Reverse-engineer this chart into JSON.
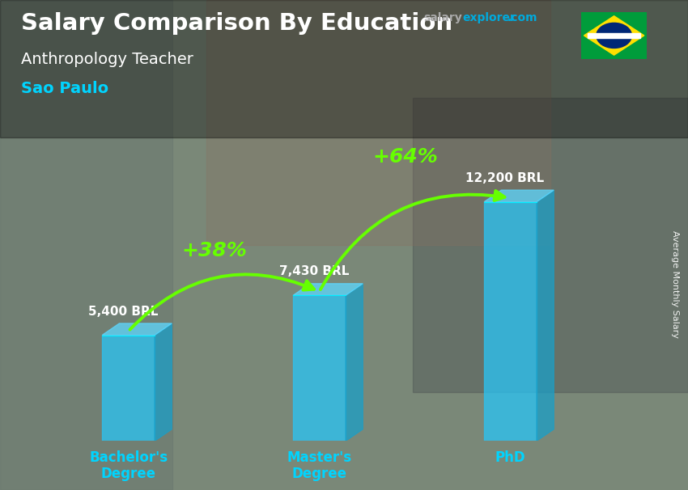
{
  "title": "Salary Comparison By Education",
  "subtitle": "Anthropology Teacher",
  "location": "Sao Paulo",
  "categories": [
    "Bachelor's\nDegree",
    "Master's\nDegree",
    "PhD"
  ],
  "values": [
    5400,
    7430,
    12200
  ],
  "value_labels": [
    "5,400 BRL",
    "7,430 BRL",
    "12,200 BRL"
  ],
  "pct_labels": [
    "+38%",
    "+64%"
  ],
  "bar_face_color": "#29c5f6",
  "bar_right_color": "#1a9fc8",
  "bar_top_color": "#5dd8ff",
  "bar_edge_color": "#00eeff",
  "bg_color": "#7a8a8a",
  "title_color": "#ffffff",
  "subtitle_color": "#ffffff",
  "location_color": "#00d4ff",
  "value_label_color": "#ffffff",
  "pct_color": "#66ff00",
  "arrow_color": "#66ff00",
  "tick_label_color": "#00d4ff",
  "ylabel": "Average Monthly Salary",
  "salary_color": "#00aadd",
  "explorer_color": "#00aadd",
  "com_color": "#00aadd",
  "ylim": [
    0,
    15000
  ],
  "bar_width": 0.55,
  "bar_positions": [
    1,
    3,
    5
  ]
}
